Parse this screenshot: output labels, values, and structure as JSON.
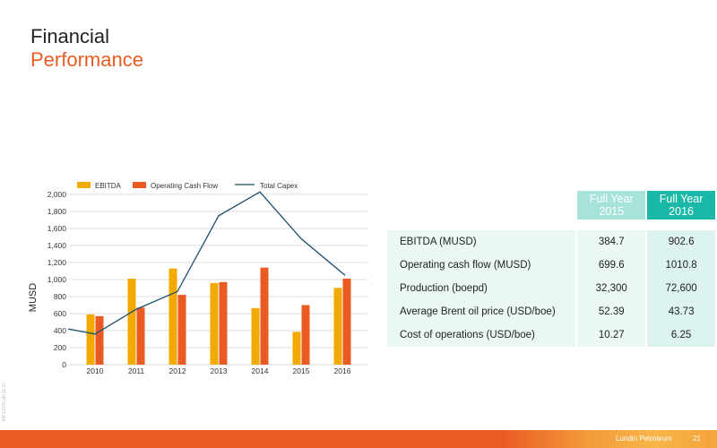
{
  "slide": {
    "title_line1": "Financial",
    "title_line2": "Performance",
    "side_code": "NP 11542 pD 11.17",
    "company": "Lundin Petroleum",
    "page_number": "21"
  },
  "colors": {
    "ebitda": "#f2a900",
    "ocf": "#ea5b24",
    "capex": "#1c4f6b",
    "accent": "#ea5b24",
    "teal": "#1ab9a7",
    "teal_light": "#a8e3da"
  },
  "chart_data": {
    "type": "bar",
    "categories": [
      "2010",
      "2011",
      "2012",
      "2013",
      "2014",
      "2015",
      "2016"
    ],
    "series": [
      {
        "name": "EBITDA",
        "type": "bar",
        "color": "#f2a900",
        "values": [
          590,
          1010,
          1130,
          960,
          665,
          385,
          903
        ]
      },
      {
        "name": "Operating Cash Flow",
        "type": "bar",
        "color": "#ea5b24",
        "values": [
          570,
          670,
          820,
          970,
          1140,
          700,
          1011
        ]
      },
      {
        "name": "Total Capex",
        "type": "line",
        "color": "#1c4f6b",
        "values": [
          360,
          650,
          860,
          1750,
          2030,
          1480,
          1050
        ]
      }
    ],
    "line_start_value": 420,
    "ylabel": "MUSD",
    "ylim": [
      0,
      2000
    ],
    "yticks": [
      "0",
      "200",
      "400",
      "600",
      "800",
      "1,000",
      "1,200",
      "1,400",
      "1,600",
      "1,800",
      "2,000"
    ],
    "grid": true,
    "legend": "top"
  },
  "table": {
    "headers": [
      "Full Year 2015",
      "Full Year 2016"
    ],
    "rows": [
      {
        "label": "EBITDA (MUSD)",
        "v2015": "384.7",
        "v2016": "902.6"
      },
      {
        "label": "Operating cash flow (MUSD)",
        "v2015": "699.6",
        "v2016": "1010.8"
      },
      {
        "label": "Production (boepd)",
        "v2015": "32,300",
        "v2016": "72,600"
      },
      {
        "label": "Average Brent oil price (USD/boe)",
        "v2015": "52.39",
        "v2016": "43.73"
      },
      {
        "label": "Cost of operations (USD/boe)",
        "v2015": "10.27",
        "v2016": "6.25"
      }
    ]
  }
}
